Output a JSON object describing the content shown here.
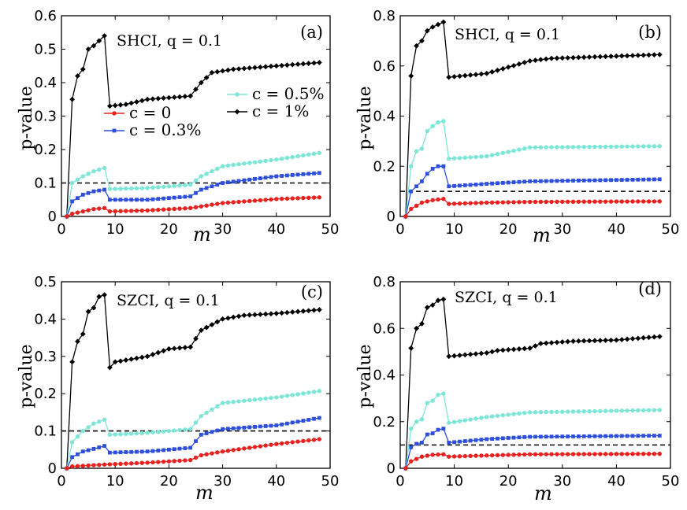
{
  "chart_data": [
    {
      "type": "line",
      "panel_label": "(a)",
      "annotation": "SHCI, q = 0.1",
      "xlabel": "m",
      "ylabel": "p-value",
      "xlim": [
        0,
        50
      ],
      "ylim": [
        0,
        0.6
      ],
      "xticks": [
        0,
        10,
        20,
        30,
        40,
        50
      ],
      "yticks": [
        0,
        0.1,
        0.2,
        0.3,
        0.4,
        0.5,
        0.6
      ],
      "ytick_labels": [
        "0",
        "0.1",
        "0.2",
        "0.3",
        "0.4",
        "0.5",
        "0.6"
      ],
      "threshold": 0.1,
      "legend": [
        {
          "label": "c = 0",
          "color": "#e8221f"
        },
        {
          "label": "c = 0.3%",
          "color": "#2d4fdc"
        },
        {
          "label": "c = 0.5%",
          "color": "#7de6d6"
        },
        {
          "label": "c = 1%",
          "color": "#000000"
        }
      ],
      "series": [
        {
          "name": "c = 1%",
          "color": "#000000",
          "marker": "diamond",
          "start": 1,
          "end": 48,
          "knots": [
            [
              1,
              0
            ],
            [
              2,
              0.35
            ],
            [
              3,
              0.42
            ],
            [
              4,
              0.44
            ],
            [
              5,
              0.5
            ],
            [
              6,
              0.51
            ],
            [
              7,
              0.525
            ],
            [
              8,
              0.54
            ],
            [
              9,
              0.33
            ],
            [
              12,
              0.335
            ],
            [
              16,
              0.35
            ],
            [
              24,
              0.36
            ],
            [
              26,
              0.4
            ],
            [
              28,
              0.43
            ],
            [
              32,
              0.44
            ],
            [
              40,
              0.45
            ],
            [
              48,
              0.46
            ]
          ]
        },
        {
          "name": "c = 0.5%",
          "color": "#7de6d6",
          "marker": "circle",
          "start": 1,
          "end": 48,
          "knots": [
            [
              1,
              0
            ],
            [
              2,
              0.1
            ],
            [
              4,
              0.12
            ],
            [
              6,
              0.135
            ],
            [
              8,
              0.145
            ],
            [
              9,
              0.082
            ],
            [
              16,
              0.085
            ],
            [
              24,
              0.095
            ],
            [
              26,
              0.12
            ],
            [
              30,
              0.15
            ],
            [
              40,
              0.17
            ],
            [
              48,
              0.19
            ]
          ]
        },
        {
          "name": "c = 0.3%",
          "color": "#2d4fdc",
          "marker": "square",
          "start": 1,
          "end": 48,
          "knots": [
            [
              1,
              0
            ],
            [
              2,
              0.045
            ],
            [
              4,
              0.065
            ],
            [
              6,
              0.075
            ],
            [
              8,
              0.08
            ],
            [
              9,
              0.05
            ],
            [
              16,
              0.05
            ],
            [
              24,
              0.06
            ],
            [
              26,
              0.08
            ],
            [
              30,
              0.1
            ],
            [
              40,
              0.12
            ],
            [
              48,
              0.13
            ]
          ]
        },
        {
          "name": "c = 0",
          "color": "#e8221f",
          "marker": "circle",
          "start": 1,
          "end": 48,
          "knots": [
            [
              1,
              0
            ],
            [
              2,
              0.008
            ],
            [
              4,
              0.015
            ],
            [
              6,
              0.022
            ],
            [
              8,
              0.025
            ],
            [
              9,
              0.015
            ],
            [
              16,
              0.018
            ],
            [
              24,
              0.025
            ],
            [
              26,
              0.03
            ],
            [
              30,
              0.04
            ],
            [
              40,
              0.052
            ],
            [
              48,
              0.057
            ]
          ]
        }
      ]
    },
    {
      "type": "line",
      "panel_label": "(b)",
      "annotation": "SHCI, q = 0.1",
      "xlabel": "m",
      "ylabel": "p-value",
      "xlim": [
        0,
        50
      ],
      "ylim": [
        0,
        0.8
      ],
      "xticks": [
        0,
        10,
        20,
        30,
        40,
        50
      ],
      "yticks": [
        0,
        0.2,
        0.4,
        0.6,
        0.8
      ],
      "ytick_labels": [
        "0",
        "0.2",
        "0.4",
        "0.6",
        "0.8"
      ],
      "threshold": 0.1,
      "series": [
        {
          "name": "c = 1%",
          "color": "#000000",
          "marker": "diamond",
          "start": 1,
          "end": 48,
          "knots": [
            [
              1,
              0
            ],
            [
              2,
              0.56
            ],
            [
              3,
              0.68
            ],
            [
              4,
              0.7
            ],
            [
              5,
              0.74
            ],
            [
              6,
              0.755
            ],
            [
              7,
              0.765
            ],
            [
              8,
              0.775
            ],
            [
              9,
              0.555
            ],
            [
              16,
              0.57
            ],
            [
              24,
              0.62
            ],
            [
              28,
              0.63
            ],
            [
              48,
              0.645
            ]
          ]
        },
        {
          "name": "c = 0.5%",
          "color": "#7de6d6",
          "marker": "circle",
          "start": 1,
          "end": 48,
          "knots": [
            [
              1,
              0
            ],
            [
              2,
              0.2
            ],
            [
              3,
              0.26
            ],
            [
              4,
              0.27
            ],
            [
              5,
              0.34
            ],
            [
              6,
              0.36
            ],
            [
              7,
              0.375
            ],
            [
              8,
              0.38
            ],
            [
              9,
              0.23
            ],
            [
              16,
              0.24
            ],
            [
              24,
              0.275
            ],
            [
              48,
              0.28
            ]
          ]
        },
        {
          "name": "c = 0.3%",
          "color": "#2d4fdc",
          "marker": "square",
          "start": 1,
          "end": 48,
          "knots": [
            [
              1,
              0
            ],
            [
              2,
              0.1
            ],
            [
              4,
              0.14
            ],
            [
              5,
              0.17
            ],
            [
              6,
              0.19
            ],
            [
              7,
              0.2
            ],
            [
              8,
              0.2
            ],
            [
              9,
              0.12
            ],
            [
              16,
              0.13
            ],
            [
              24,
              0.14
            ],
            [
              48,
              0.148
            ]
          ]
        },
        {
          "name": "c = 0",
          "color": "#e8221f",
          "marker": "circle",
          "start": 1,
          "end": 48,
          "knots": [
            [
              1,
              0
            ],
            [
              2,
              0.03
            ],
            [
              4,
              0.055
            ],
            [
              6,
              0.065
            ],
            [
              8,
              0.07
            ],
            [
              9,
              0.05
            ],
            [
              16,
              0.055
            ],
            [
              24,
              0.058
            ],
            [
              48,
              0.06
            ]
          ]
        }
      ]
    },
    {
      "type": "line",
      "panel_label": "(c)",
      "annotation": "SZCI, q = 0.1",
      "xlabel": "m",
      "ylabel": "p-value",
      "xlim": [
        0,
        50
      ],
      "ylim": [
        0,
        0.5
      ],
      "xticks": [
        0,
        10,
        20,
        30,
        40,
        50
      ],
      "yticks": [
        0,
        0.1,
        0.2,
        0.3,
        0.4,
        0.5
      ],
      "ytick_labels": [
        "0",
        "0.1",
        "0.2",
        "0.3",
        "0.4",
        "0.5"
      ],
      "threshold": 0.1,
      "series": [
        {
          "name": "c = 1%",
          "color": "#000000",
          "marker": "diamond",
          "start": 1,
          "end": 48,
          "knots": [
            [
              1,
              0
            ],
            [
              2,
              0.285
            ],
            [
              3,
              0.34
            ],
            [
              4,
              0.36
            ],
            [
              5,
              0.42
            ],
            [
              6,
              0.43
            ],
            [
              7,
              0.46
            ],
            [
              8,
              0.465
            ],
            [
              9,
              0.27
            ],
            [
              10,
              0.285
            ],
            [
              16,
              0.3
            ],
            [
              20,
              0.32
            ],
            [
              24,
              0.325
            ],
            [
              26,
              0.37
            ],
            [
              30,
              0.4
            ],
            [
              34,
              0.41
            ],
            [
              40,
              0.415
            ],
            [
              48,
              0.425
            ]
          ]
        },
        {
          "name": "c = 0.5%",
          "color": "#7de6d6",
          "marker": "circle",
          "start": 1,
          "end": 48,
          "knots": [
            [
              1,
              0
            ],
            [
              2,
              0.07
            ],
            [
              4,
              0.1
            ],
            [
              6,
              0.12
            ],
            [
              8,
              0.13
            ],
            [
              9,
              0.09
            ],
            [
              16,
              0.095
            ],
            [
              24,
              0.105
            ],
            [
              26,
              0.14
            ],
            [
              30,
              0.175
            ],
            [
              40,
              0.19
            ],
            [
              48,
              0.207
            ]
          ]
        },
        {
          "name": "c = 0.3%",
          "color": "#2d4fdc",
          "marker": "square",
          "start": 1,
          "end": 48,
          "knots": [
            [
              1,
              0
            ],
            [
              2,
              0.03
            ],
            [
              4,
              0.045
            ],
            [
              6,
              0.052
            ],
            [
              8,
              0.06
            ],
            [
              9,
              0.042
            ],
            [
              16,
              0.045
            ],
            [
              24,
              0.055
            ],
            [
              26,
              0.09
            ],
            [
              30,
              0.105
            ],
            [
              40,
              0.115
            ],
            [
              48,
              0.135
            ]
          ]
        },
        {
          "name": "c = 0",
          "color": "#e8221f",
          "marker": "circle",
          "start": 1,
          "end": 48,
          "knots": [
            [
              1,
              0
            ],
            [
              2,
              0.005
            ],
            [
              8,
              0.01
            ],
            [
              16,
              0.015
            ],
            [
              24,
              0.022
            ],
            [
              26,
              0.035
            ],
            [
              30,
              0.045
            ],
            [
              40,
              0.065
            ],
            [
              48,
              0.078
            ]
          ]
        }
      ]
    },
    {
      "type": "line",
      "panel_label": "(d)",
      "annotation": "SZCI, q = 0.1",
      "xlabel": "m",
      "ylabel": "p-value",
      "xlim": [
        0,
        50
      ],
      "ylim": [
        0,
        0.8
      ],
      "xticks": [
        0,
        10,
        20,
        30,
        40,
        50
      ],
      "yticks": [
        0,
        0.2,
        0.4,
        0.6,
        0.8
      ],
      "ytick_labels": [
        "0",
        "0.2",
        "0.4",
        "0.6",
        "0.8"
      ],
      "threshold": 0.1,
      "series": [
        {
          "name": "c = 1%",
          "color": "#000000",
          "marker": "diamond",
          "start": 1,
          "end": 48,
          "knots": [
            [
              1,
              0
            ],
            [
              2,
              0.515
            ],
            [
              3,
              0.6
            ],
            [
              4,
              0.62
            ],
            [
              5,
              0.69
            ],
            [
              6,
              0.7
            ],
            [
              7,
              0.72
            ],
            [
              8,
              0.725
            ],
            [
              9,
              0.48
            ],
            [
              16,
              0.495
            ],
            [
              18,
              0.505
            ],
            [
              24,
              0.515
            ],
            [
              26,
              0.535
            ],
            [
              32,
              0.545
            ],
            [
              40,
              0.55
            ],
            [
              48,
              0.565
            ]
          ]
        },
        {
          "name": "c = 0.5%",
          "color": "#7de6d6",
          "marker": "circle",
          "start": 1,
          "end": 48,
          "knots": [
            [
              1,
              0
            ],
            [
              2,
              0.17
            ],
            [
              3,
              0.2
            ],
            [
              4,
              0.21
            ],
            [
              5,
              0.28
            ],
            [
              6,
              0.29
            ],
            [
              7,
              0.315
            ],
            [
              8,
              0.32
            ],
            [
              9,
              0.195
            ],
            [
              16,
              0.22
            ],
            [
              24,
              0.24
            ],
            [
              48,
              0.25
            ]
          ]
        },
        {
          "name": "c = 0.3%",
          "color": "#2d4fdc",
          "marker": "square",
          "start": 1,
          "end": 48,
          "knots": [
            [
              1,
              0
            ],
            [
              2,
              0.09
            ],
            [
              3,
              0.105
            ],
            [
              4,
              0.11
            ],
            [
              5,
              0.145
            ],
            [
              6,
              0.15
            ],
            [
              7,
              0.165
            ],
            [
              8,
              0.17
            ],
            [
              9,
              0.11
            ],
            [
              16,
              0.125
            ],
            [
              24,
              0.135
            ],
            [
              48,
              0.14
            ]
          ]
        },
        {
          "name": "c = 0",
          "color": "#e8221f",
          "marker": "circle",
          "start": 1,
          "end": 48,
          "knots": [
            [
              1,
              0
            ],
            [
              2,
              0.03
            ],
            [
              4,
              0.05
            ],
            [
              6,
              0.058
            ],
            [
              8,
              0.06
            ],
            [
              9,
              0.05
            ],
            [
              16,
              0.055
            ],
            [
              24,
              0.06
            ],
            [
              48,
              0.062
            ]
          ]
        }
      ]
    }
  ]
}
